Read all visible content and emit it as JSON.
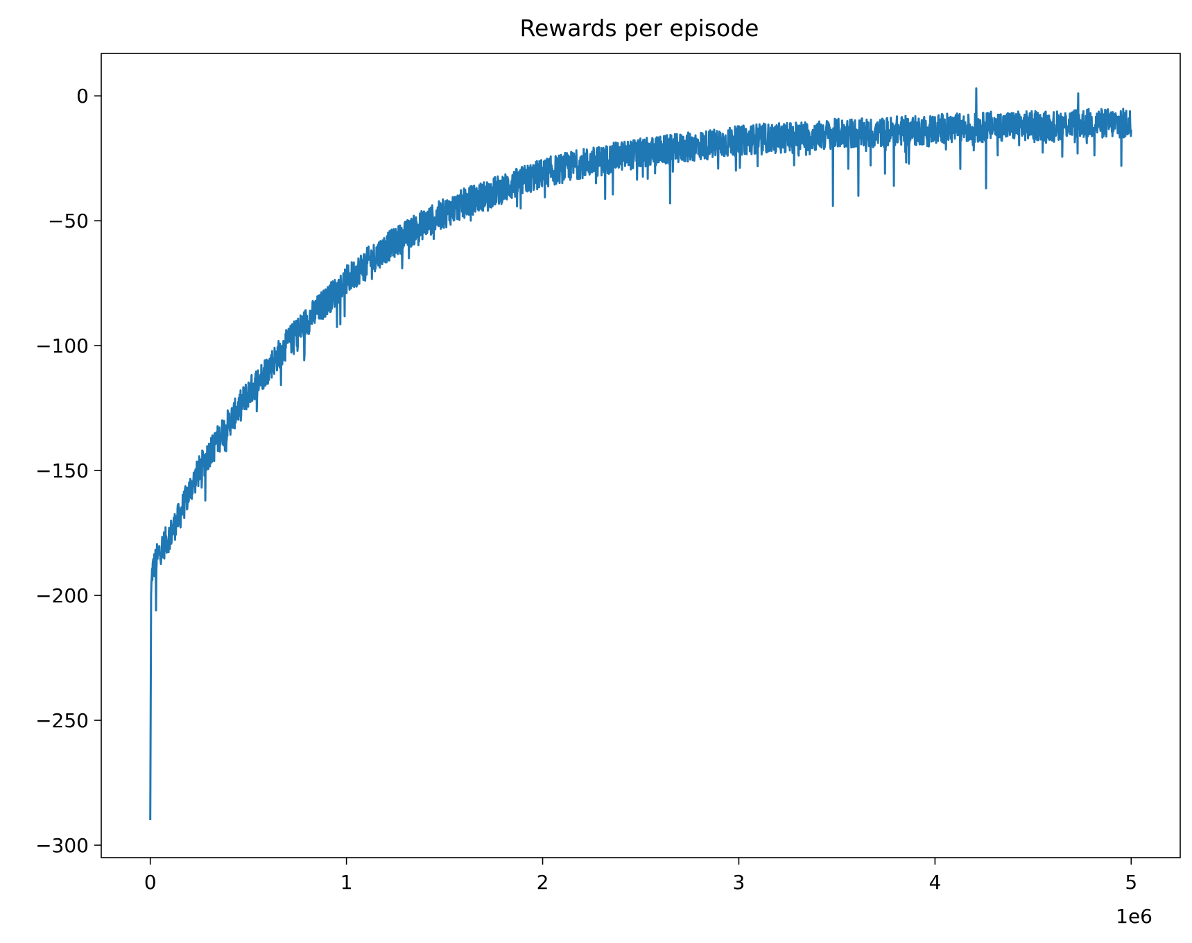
{
  "chart_data": {
    "type": "line",
    "title": "Rewards per episode",
    "xlabel": "",
    "ylabel": "",
    "x_offset_label": "1e6",
    "xlim": [
      -0.25,
      5.25
    ],
    "ylim": [
      -305,
      17
    ],
    "x_ticks": [
      0,
      1,
      2,
      3,
      4,
      5
    ],
    "x_tick_labels": [
      "0",
      "1",
      "2",
      "3",
      "4",
      "5"
    ],
    "y_ticks": [
      0,
      -50,
      -100,
      -150,
      -200,
      -250,
      -300
    ],
    "y_tick_labels": [
      "0",
      "−50",
      "−100",
      "−150",
      "−200",
      "−250",
      "−300"
    ],
    "grid": false,
    "series_color": "#1f77b4",
    "series": [
      {
        "x": [
          0.0,
          0.004,
          0.01,
          0.02,
          0.05,
          0.1,
          0.15,
          0.2,
          0.25,
          0.3,
          0.4,
          0.5,
          0.6,
          0.7,
          0.8,
          0.9,
          1.0,
          1.1,
          1.2,
          1.3,
          1.4,
          1.5,
          1.6,
          1.7,
          1.8,
          1.9,
          2.0,
          2.1,
          2.2,
          2.3,
          2.4,
          2.5,
          2.6,
          2.7,
          2.8,
          2.9,
          3.0,
          3.1,
          3.2,
          3.3,
          3.4,
          3.5,
          3.6,
          3.7,
          3.8,
          3.9,
          4.0,
          4.1,
          4.2,
          4.3,
          4.4,
          4.5,
          4.6,
          4.7,
          4.8,
          4.9,
          5.0
        ],
        "values": [
          -290,
          -200,
          -190,
          -188,
          -182,
          -176,
          -168,
          -158,
          -150,
          -143,
          -131,
          -119,
          -109,
          -99,
          -90,
          -82,
          -74,
          -67,
          -61,
          -56,
          -51,
          -47,
          -43,
          -40,
          -37,
          -34,
          -31,
          -29,
          -27,
          -26,
          -24,
          -23,
          -22,
          -21,
          -20,
          -19,
          -18,
          -17,
          -17,
          -16,
          -16,
          -15,
          -15,
          -15,
          -14,
          -14,
          -13,
          -13,
          -13,
          -12,
          -12,
          -12,
          -12,
          -11,
          -11,
          -11,
          -11
        ],
        "noise_amplitude": 6,
        "spikes": [
          {
            "x": 0.03,
            "y": -206
          },
          {
            "x": 0.28,
            "y": -162
          },
          {
            "x": 3.48,
            "y": -44
          },
          {
            "x": 3.61,
            "y": -40
          },
          {
            "x": 3.79,
            "y": -36
          },
          {
            "x": 4.26,
            "y": -37
          },
          {
            "x": 4.21,
            "y": 3
          },
          {
            "x": 4.73,
            "y": 1
          },
          {
            "x": 2.65,
            "y": -43
          },
          {
            "x": 4.95,
            "y": -28
          }
        ]
      }
    ]
  }
}
